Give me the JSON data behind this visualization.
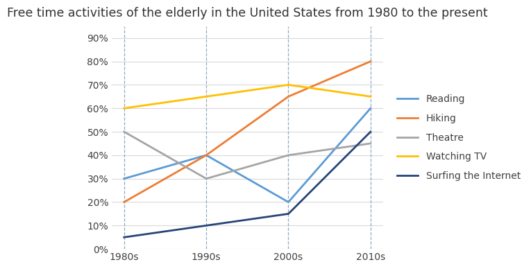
{
  "title": "Free time activities of the elderly in the United States from 1980 to the present",
  "x_labels": [
    "1980s",
    "1990s",
    "2000s",
    "2010s"
  ],
  "x_values": [
    0,
    1,
    2,
    3
  ],
  "series": [
    {
      "name": "Reading",
      "values": [
        30,
        40,
        20,
        60
      ],
      "color": "#5B9BD5",
      "linewidth": 2.0
    },
    {
      "name": "Hiking",
      "values": [
        20,
        40,
        65,
        80
      ],
      "color": "#ED7D31",
      "linewidth": 2.0
    },
    {
      "name": "Theatre",
      "values": [
        50,
        30,
        40,
        45
      ],
      "color": "#A5A5A5",
      "linewidth": 2.0
    },
    {
      "name": "Watching TV",
      "values": [
        60,
        65,
        70,
        65
      ],
      "color": "#FFC000",
      "linewidth": 2.0
    },
    {
      "name": "Surfing the Internet",
      "values": [
        5,
        10,
        15,
        50
      ],
      "color": "#264478",
      "linewidth": 2.0
    }
  ],
  "ylim": [
    0,
    95
  ],
  "yticks": [
    0,
    10,
    20,
    30,
    40,
    50,
    60,
    70,
    80,
    90
  ],
  "ytick_labels": [
    "0%",
    "10%",
    "20%",
    "30%",
    "40%",
    "50%",
    "60%",
    "70%",
    "80%",
    "90%"
  ],
  "grid_color": "#D9D9D9",
  "vline_color": "#8EA9C1",
  "title_fontsize": 12.5,
  "tick_fontsize": 10,
  "background_color": "#FFFFFF",
  "legend_fontsize": 10,
  "legend_text_color": "#404040"
}
